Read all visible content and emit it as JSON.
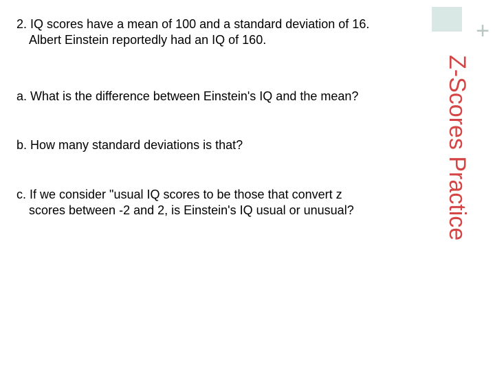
{
  "title": "Z-Scores Practice",
  "question": {
    "line1": "2. IQ scores have a mean of 100 and a standard deviation of 16.",
    "line2": "Albert Einstein reportedly had an IQ of 160."
  },
  "partA": "a. What is the difference between Einstein's IQ and the mean?",
  "partB": "b. How many standard deviations is that?",
  "partC": {
    "line1": "c. If we consider \"usual IQ scores to be those that convert z",
    "line2": "scores between -2 and 2, is Einstein's IQ usual or unusual?"
  },
  "colors": {
    "title": "#d64545",
    "corner_box": "#d9e8e4",
    "plus": "#b9c6c3",
    "text": "#000000",
    "background": "#ffffff"
  },
  "fonts": {
    "body_size": 18,
    "title_size": 34
  }
}
